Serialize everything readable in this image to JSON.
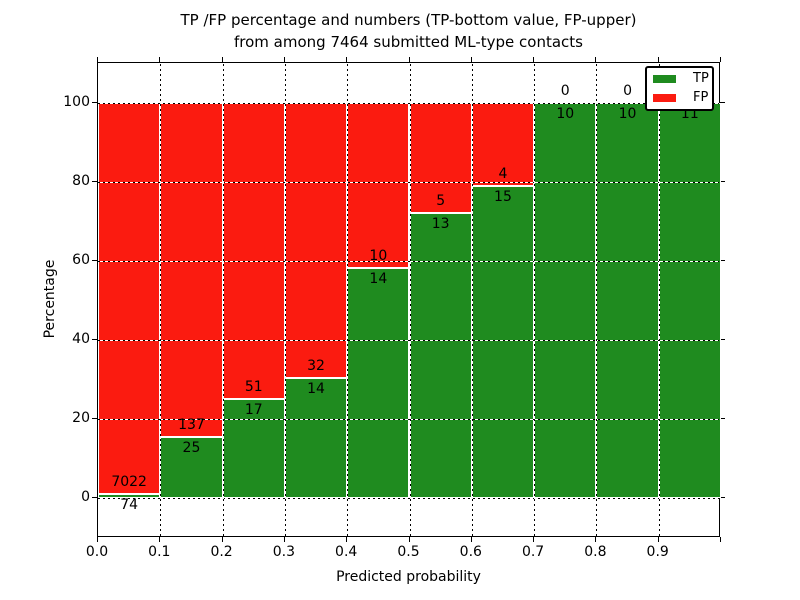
{
  "title_line1": "TP /FP percentage and numbers (TP-bottom value, FP-upper)",
  "title_line2": "from among 7464 submitted ML-type contacts",
  "chart_data": {
    "type": "bar",
    "subtype": "stacked-percentage-histogram",
    "title": "TP /FP percentage and numbers (TP-bottom value, FP-upper)\nfrom among 7464 submitted ML-type contacts",
    "total_contacts": 7464,
    "xlabel": "Predicted probability",
    "ylabel": "Percentage",
    "x_tick_labels": [
      "0.0",
      "0.1",
      "0.2",
      "0.3",
      "0.4",
      "0.5",
      "0.6",
      "0.7",
      "0.8",
      "0.9"
    ],
    "y_ticks": [
      0,
      20,
      40,
      60,
      80,
      100
    ],
    "y_tick_labels": [
      "0",
      "20",
      "40",
      "60",
      "80",
      "100"
    ],
    "xlim": [
      0.0,
      1.0
    ],
    "ylim": [
      -10,
      110
    ],
    "bin_width": 0.1,
    "categories": [
      "0.0-0.1",
      "0.1-0.2",
      "0.2-0.3",
      "0.3-0.4",
      "0.4-0.5",
      "0.5-0.6",
      "0.6-0.7",
      "0.7-0.8",
      "0.8-0.9",
      "0.9-1.0"
    ],
    "series": [
      {
        "name": "TP",
        "color": "#1f8b1f",
        "counts": [
          74,
          25,
          17,
          14,
          14,
          13,
          15,
          10,
          10,
          11
        ]
      },
      {
        "name": "FP",
        "color": "#fb1b10",
        "counts": [
          7022,
          137,
          51,
          32,
          10,
          5,
          4,
          0,
          0,
          0
        ]
      }
    ],
    "tp_percent": [
      1.04,
      15.43,
      25.0,
      30.43,
      58.33,
      72.22,
      78.95,
      100.0,
      100.0,
      100.0
    ],
    "grid": {
      "style": "dotted",
      "color": "#000000"
    },
    "bar_edge_color": "#ffffff",
    "legend": {
      "position": "upper right",
      "entries": [
        {
          "label": "TP",
          "color": "#1f8b1f"
        },
        {
          "label": "FP",
          "color": "#fb1b10"
        }
      ]
    }
  }
}
